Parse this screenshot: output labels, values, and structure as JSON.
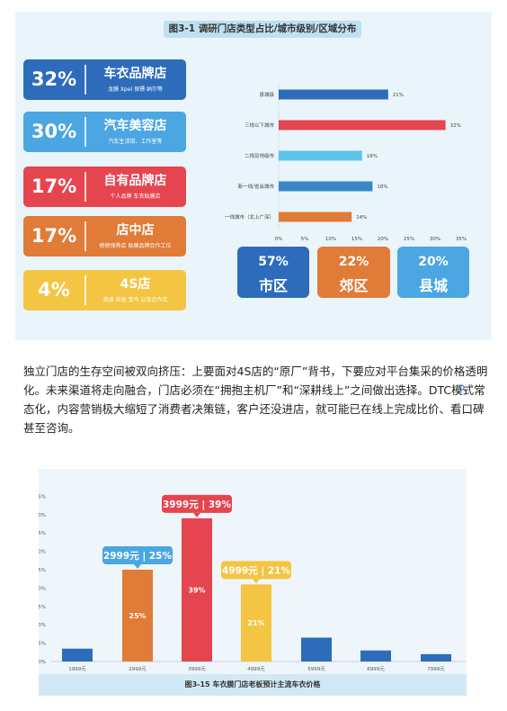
{
  "figure1": {
    "title": "图3-1 调研门店类型占比/城市级别/区域分布",
    "store_types": [
      {
        "percent": "32%",
        "name": "车衣品牌店",
        "sub": "龙膜 Xpel 保镖 纳尔等",
        "color": "#2d6cbb"
      },
      {
        "percent": "30%",
        "name": "汽车美容店",
        "sub": "汽车生活馆、工作室等",
        "color": "#4ba6e2"
      },
      {
        "percent": "17%",
        "name": "自有品牌店",
        "sub": "个人品牌 车衣贴膜店",
        "color": "#e5454f"
      },
      {
        "percent": "17%",
        "name": "店中店",
        "sub": "修修保养店 贴膜品牌合作工位",
        "color": "#e07b38"
      },
      {
        "percent": "4%",
        "name": "4S店",
        "sub": "奥迪 奔驰 宝马 以及合作店",
        "color": "#f4c542"
      }
    ],
    "regions": [
      {
        "percent": "57%",
        "name": "市区",
        "color": "#2d6cbb"
      },
      {
        "percent": "22%",
        "name": "郊区",
        "color": "#e07b38"
      },
      {
        "percent": "20%",
        "name": "县城",
        "color": "#4ba6e2"
      }
    ]
  },
  "chart_data": [
    {
      "type": "bar",
      "orientation": "horizontal",
      "title": "",
      "categories": [
        "县城级",
        "三线以下城市",
        "二线及地级市",
        "新一线/省会城市",
        "一线城市（北上广深）"
      ],
      "values": [
        21,
        32,
        16,
        18,
        14
      ],
      "value_labels": [
        "21%",
        "32%",
        "16%",
        "18%",
        "14%"
      ],
      "colors": [
        "#2d6cbb",
        "#e5454f",
        "#5fc3ea",
        "#3a86c8",
        "#e07b38"
      ],
      "xlim": [
        0,
        35
      ],
      "x_ticks": [
        "0%",
        "5%",
        "10%",
        "15%",
        "20%",
        "25%",
        "30%",
        "35%"
      ]
    },
    {
      "type": "bar",
      "title": "图3-15 车衣膜门店老板预计主流车衣价格",
      "categories": [
        "1999元",
        "2999元",
        "3999元",
        "4999元",
        "5999元",
        "6999元",
        "7999元"
      ],
      "values": [
        3.5,
        25,
        39,
        21,
        6.5,
        3,
        2
      ],
      "colors": [
        "#2d6cbb",
        "#e07b38",
        "#e5454f",
        "#f4c542",
        "#2d6cbb",
        "#2d6cbb",
        "#2d6cbb"
      ],
      "value_labels": [
        "",
        "25%",
        "39%",
        "21%",
        "",
        "",
        ""
      ],
      "callouts": [
        {
          "category": "2999元",
          "text": "2999元 | 25%",
          "color": "#4ba6e2"
        },
        {
          "category": "3999元",
          "text": "3999元 | 39%",
          "color": "#e5454f"
        },
        {
          "category": "4999元",
          "text": "4999元 | 21%",
          "color": "#f4c542"
        }
      ],
      "ylim": [
        0,
        45
      ],
      "y_ticks": [
        "0%",
        "5%",
        "10%",
        "15%",
        "20%",
        "25%",
        "30%",
        "35%",
        "40%",
        "45%"
      ],
      "grid": false
    }
  ],
  "paragraph": "独立门店的生存空间被双向挤压：上要面对4S店的“原厂”背书，下要应对平台集采的价格透明化。未来渠道将走向融合，门店必须在“拥抱主机厂”和“深耕线上”之间做出选择。DTC模式常态化，内容营销极大缩短了消费者决策链，客户还没进店，就可能已在线上完成比价、看口碑甚至咨询。",
  "search_icon": "search-icon"
}
